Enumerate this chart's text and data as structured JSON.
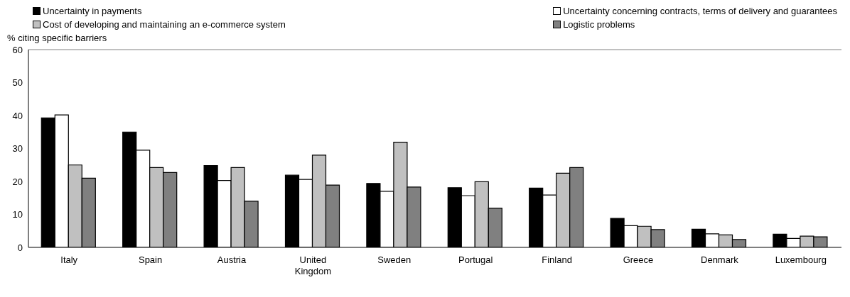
{
  "chart_data": {
    "type": "bar",
    "ylabel": "% citing specific barriers",
    "categories": [
      "Italy",
      "Spain",
      "Austria",
      "United Kingdom",
      "Sweden",
      "Portugal",
      "Finland",
      "Greece",
      "Denmark",
      "Luxembourg"
    ],
    "series": [
      {
        "name": "Uncertainty in payments",
        "color": "#000000",
        "values": [
          39.3,
          35,
          24.8,
          21.9,
          19.4,
          18.1,
          18,
          8.8,
          5.5,
          4
        ]
      },
      {
        "name": "Uncertainty concerning contracts, terms of delivery and guarantees",
        "color": "#ffffff",
        "values": [
          40.2,
          29.5,
          20.3,
          20.6,
          17,
          15.7,
          15.9,
          6.6,
          4.1,
          2.7
        ]
      },
      {
        "name": "Cost of developing and maintaining an e-commerce system",
        "color": "#c0c0c0",
        "values": [
          25,
          24.2,
          24.2,
          28,
          31.9,
          19.9,
          22.5,
          6.4,
          3.8,
          3.4
        ]
      },
      {
        "name": "Logistic problems",
        "color": "#808080",
        "values": [
          21,
          22.7,
          14,
          18.9,
          18.3,
          11.9,
          24.2,
          5.4,
          2.4,
          3.2
        ]
      }
    ],
    "ylim": [
      0,
      60
    ],
    "yticks": [
      0,
      10,
      20,
      30,
      40,
      50,
      60
    ],
    "grid": false,
    "legend": "top"
  }
}
